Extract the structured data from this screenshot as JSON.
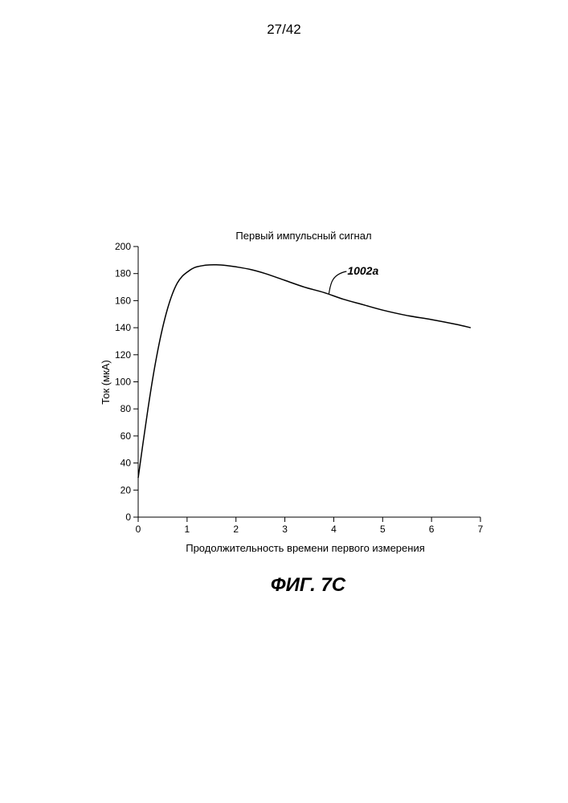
{
  "page": {
    "number": "27/42",
    "figure_caption": "ФИГ. 7С"
  },
  "chart_data": {
    "type": "line",
    "title": "Первый импульсный сигнал",
    "xlabel": "Продолжительность времени первого измерения",
    "ylabel": "Ток (мкА)",
    "xlim": [
      0,
      7
    ],
    "ylim": [
      0,
      200
    ],
    "x_ticks": [
      0,
      1,
      2,
      3,
      4,
      5,
      6,
      7
    ],
    "y_ticks": [
      0,
      20,
      40,
      60,
      80,
      100,
      120,
      140,
      160,
      180,
      200
    ],
    "grid": false,
    "series": [
      {
        "x": [
          0,
          0.1,
          0.2,
          0.3,
          0.4,
          0.5,
          0.6,
          0.7,
          0.8,
          0.9,
          1.0,
          1.1,
          1.2,
          1.4,
          1.6,
          1.8,
          2.0,
          2.3,
          2.6,
          3.0,
          3.4,
          3.8,
          4.2,
          4.6,
          5.0,
          5.5,
          6.0,
          6.5,
          6.8
        ],
        "y": [
          29,
          55,
          80,
          103,
          123,
          140,
          154,
          165,
          173,
          178,
          181,
          183.5,
          185,
          186.3,
          186.5,
          186,
          185,
          183,
          180,
          175,
          170,
          166,
          161,
          157,
          153,
          149,
          146,
          142.5,
          140
        ]
      }
    ],
    "annotations": [
      {
        "text": "1002а",
        "x": 3.9,
        "y": 165
      }
    ]
  }
}
